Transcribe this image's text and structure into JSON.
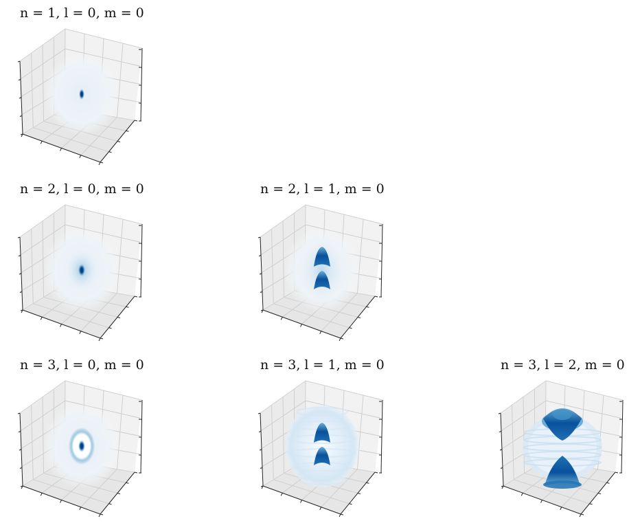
{
  "figure": {
    "panel_titles": [
      "n = 1, l = 0, m = 0",
      "n = 2, l = 0, m = 0",
      "n = 2, l = 1, m = 0",
      "n = 3, l = 0, m = 0",
      "n = 3, l = 1, m = 0",
      "n = 3, l = 2, m = 0"
    ]
  },
  "chart_data": [
    {
      "type": "scatter3d",
      "title": "n = 1, l = 0, m = 0",
      "n": 1,
      "l": 0,
      "m": 0,
      "orbital_shape": "compact single lobe at center",
      "colormap": "Blues",
      "grid": true,
      "tick_labels": false
    },
    {
      "type": "scatter3d",
      "title": "n = 2, l = 0, m = 0",
      "n": 2,
      "l": 0,
      "m": 0,
      "orbital_shape": "central core with faint spherical shell",
      "colormap": "Blues",
      "grid": true,
      "tick_labels": false
    },
    {
      "type": "scatter3d",
      "title": "n = 2, l = 1, m = 0",
      "n": 2,
      "l": 1,
      "m": 0,
      "orbital_shape": "two lobes along vertical axis",
      "colormap": "Blues",
      "grid": true,
      "tick_labels": false
    },
    {
      "type": "scatter3d",
      "title": "n = 3, l = 0, m = 0",
      "n": 3,
      "l": 0,
      "m": 0,
      "orbital_shape": "central core with concentric rings",
      "colormap": "Blues",
      "grid": true,
      "tick_labels": false
    },
    {
      "type": "scatter3d",
      "title": "n = 3, l = 1, m = 0",
      "n": 3,
      "l": 1,
      "m": 0,
      "orbital_shape": "two inner lobes inside outer spherical shell",
      "colormap": "Blues",
      "grid": true,
      "tick_labels": false
    },
    {
      "type": "scatter3d",
      "title": "n = 3, l = 2, m = 0",
      "n": 3,
      "l": 2,
      "m": 0,
      "orbital_shape": "top and bottom lobes with equatorial ring",
      "colormap": "Blues",
      "grid": true,
      "tick_labels": false
    }
  ],
  "colors": {
    "grid": "#cccccc",
    "pane_light": "#f2f2f2",
    "pane_mid": "#e8e8e8",
    "pane_dark": "#e3e3e3",
    "dark_blue": "#08519c",
    "light_blue": "#c6dbef"
  }
}
